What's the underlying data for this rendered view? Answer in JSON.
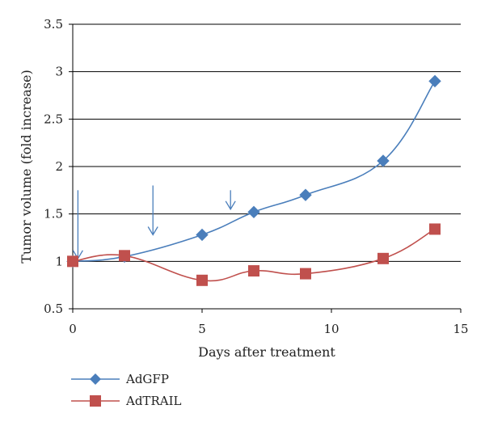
{
  "chart_data": {
    "type": "line",
    "title": "",
    "xlabel": "Days after treatment",
    "ylabel": "Tumor volume (fold increase)",
    "xlim": [
      0,
      15
    ],
    "ylim": [
      0.5,
      3.5
    ],
    "x_ticks": [
      "0",
      "5",
      "10",
      "15"
    ],
    "y_ticks": [
      "0.5",
      "1",
      "1.5",
      "2",
      "2.5",
      "3",
      "3.5"
    ],
    "grid": "horizontal",
    "legend_position": "bottom-left",
    "series": [
      {
        "name": "AdGFP",
        "color": "#4a7ebb",
        "marker": "diamond",
        "x": [
          0,
          2,
          5,
          7,
          9,
          12,
          14
        ],
        "y": [
          1.0,
          1.05,
          1.28,
          1.52,
          1.7,
          2.06,
          2.9
        ]
      },
      {
        "name": "AdTRAIL",
        "color": "#c0504d",
        "marker": "square",
        "x": [
          0,
          2,
          5,
          7,
          9,
          12,
          14
        ],
        "y": [
          1.0,
          1.06,
          0.8,
          0.9,
          0.87,
          1.03,
          1.34
        ]
      }
    ],
    "annotations": {
      "treatment_arrows_x": [
        0.2,
        3.1,
        6.1
      ],
      "arrow_color": "#4a7ebb"
    }
  }
}
